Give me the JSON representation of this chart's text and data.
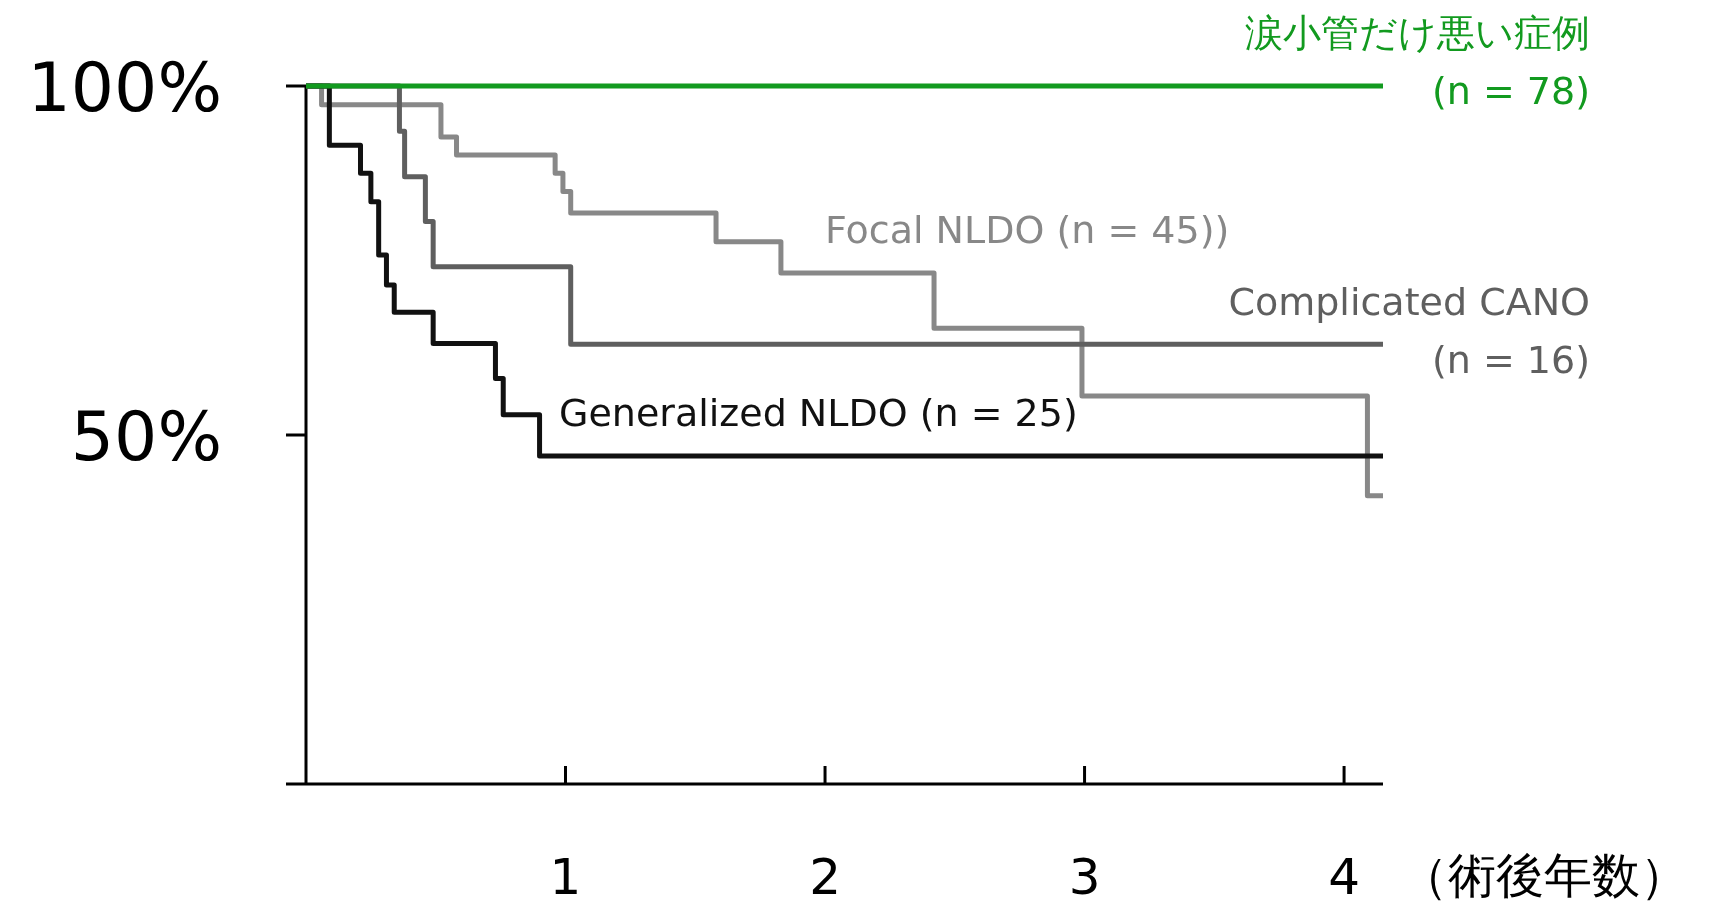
{
  "chart_data": {
    "type": "step",
    "xlabel": "（術後年数）",
    "xlim": [
      0,
      4.15
    ],
    "xticks": [
      1,
      2,
      3,
      4
    ],
    "ylim": [
      0,
      100
    ],
    "yticks": [
      {
        "value": 50,
        "label": "50%"
      },
      {
        "value": 100,
        "label": "100%"
      }
    ],
    "grid": false,
    "line_style": "solid",
    "series": [
      {
        "name": "涙小管だけ悪い症例\n(n = 78)",
        "color": "#129a1f",
        "x": [
          0,
          4.15
        ],
        "values": [
          100,
          100
        ]
      },
      {
        "name": "Focal NLDO (n = 45))",
        "color": "#888888",
        "x": [
          0,
          0.06,
          0.52,
          0.58,
          0.96,
          0.99,
          1.02,
          1.58,
          1.83,
          2.42,
          2.99,
          4.09,
          4.15
        ],
        "values": [
          100,
          97.3,
          92.7,
          90.1,
          87.5,
          84.9,
          81.8,
          77.7,
          73.2,
          65.3,
          55.6,
          41.3,
          41.3
        ]
      },
      {
        "name": "Complicated CANO\n(n = 16)",
        "color": "#5f5f5f",
        "x": [
          0,
          0.36,
          0.38,
          0.46,
          0.49,
          1.02,
          4.15
        ],
        "values": [
          100,
          93.5,
          87,
          80.6,
          74.1,
          63,
          63
        ]
      },
      {
        "name": "Generalized NLDO (n = 25)",
        "color": "#111111",
        "x": [
          0,
          0.09,
          0.21,
          0.25,
          0.28,
          0.31,
          0.34,
          0.49,
          0.73,
          0.76,
          0.9,
          4.15
        ],
        "values": [
          100,
          91.5,
          87.5,
          83.4,
          75.8,
          71.5,
          67.6,
          63.1,
          58.1,
          52.9,
          47,
          47
        ]
      }
    ]
  }
}
